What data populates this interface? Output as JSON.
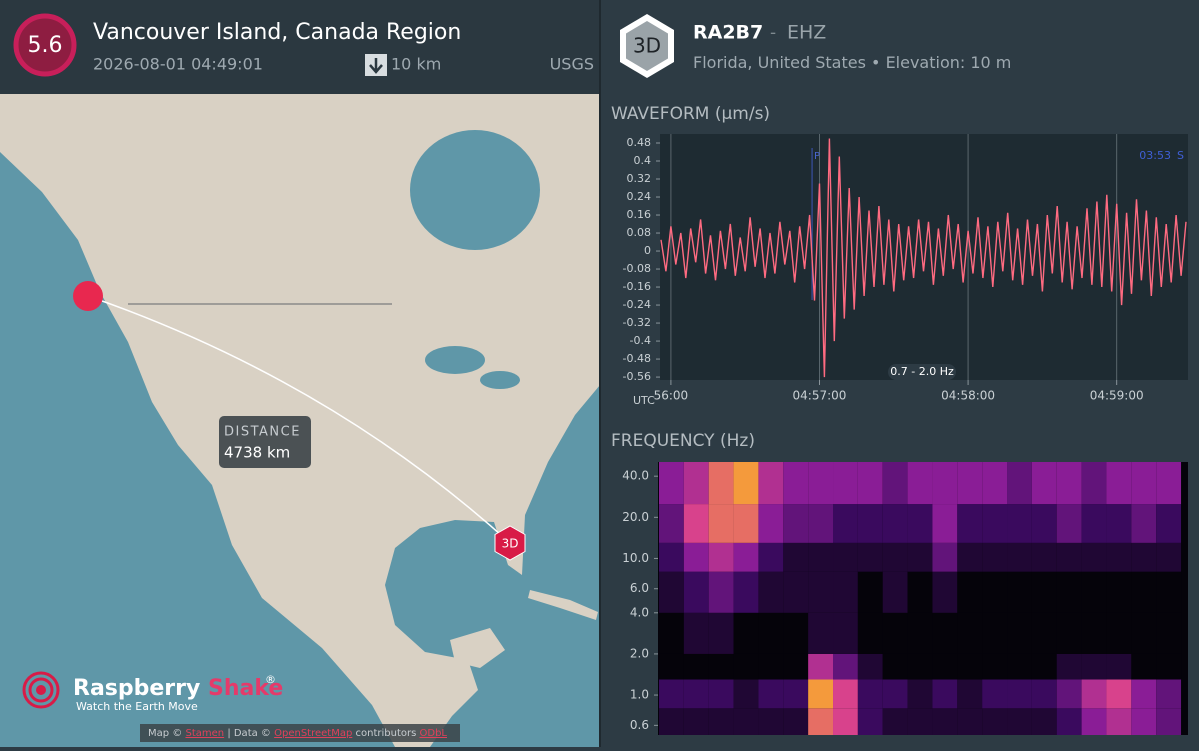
{
  "event": {
    "magnitude": "5.6",
    "title": "Vancouver Island, Canada Region",
    "time": "2026-08-01 04:49:01",
    "depth": "10 km",
    "source": "USGS"
  },
  "map": {
    "distance_label": "DISTANCE",
    "distance": "4738 km",
    "station_marker": "3D",
    "logo": {
      "name": "Raspberry",
      "accent": "Shake",
      "mark": "®",
      "tagline": "Watch the Earth Move"
    },
    "attribution": {
      "prefix": "Map ©",
      "tiles": "Stamen",
      "data": "| Data ©",
      "osm": "OpenStreetMap",
      "contributors": "contributors",
      "license": "ODbL"
    }
  },
  "station": {
    "badge": "3D",
    "code": "RA2B7",
    "separator": "-",
    "channel": "EHZ",
    "location": "Florida, United States",
    "bullet": "•",
    "elevation": "Elevation: 10 m"
  },
  "chart_data": [
    {
      "type": "line",
      "title": "WAVEFORM",
      "unit": "(µm/s)",
      "color": "#ff6b81",
      "x": [
        -4,
        -2,
        0,
        2,
        4,
        6,
        8,
        10,
        12,
        14,
        16,
        18,
        20,
        22,
        24,
        26,
        28,
        30,
        32,
        34,
        36,
        38,
        40,
        42,
        44,
        46,
        48,
        50,
        52,
        54,
        56,
        58,
        60,
        62,
        64,
        66,
        68,
        70,
        72,
        74,
        76,
        78,
        80,
        82,
        84,
        86,
        88,
        90,
        92,
        94,
        96,
        98,
        100,
        102,
        104,
        106,
        108,
        110,
        112,
        114,
        116,
        118,
        120,
        122,
        124,
        126,
        128,
        130,
        132,
        134,
        136,
        138,
        140,
        142,
        144,
        146,
        148,
        150,
        152,
        154,
        156,
        158,
        160,
        162,
        164,
        166,
        168,
        170,
        172,
        174,
        176,
        178,
        180,
        182,
        184,
        186,
        188,
        190,
        192,
        194,
        196,
        198,
        200,
        202,
        204,
        206,
        208
      ],
      "values": [
        0.05,
        -0.09,
        0.11,
        -0.06,
        0.08,
        -0.12,
        0.1,
        -0.05,
        0.14,
        -0.1,
        0.07,
        -0.13,
        0.09,
        -0.08,
        0.12,
        -0.11,
        0.06,
        -0.09,
        0.15,
        -0.07,
        0.1,
        -0.12,
        0.08,
        -0.1,
        0.13,
        -0.06,
        0.09,
        -0.14,
        0.11,
        -0.08,
        0.16,
        -0.22,
        0.3,
        -0.56,
        0.5,
        -0.4,
        0.42,
        -0.3,
        0.28,
        -0.26,
        0.24,
        -0.2,
        0.18,
        -0.16,
        0.2,
        -0.15,
        0.14,
        -0.18,
        0.12,
        -0.13,
        0.11,
        -0.12,
        0.14,
        -0.09,
        0.13,
        -0.15,
        0.1,
        -0.11,
        0.16,
        -0.08,
        0.12,
        -0.14,
        0.09,
        -0.1,
        0.15,
        -0.12,
        0.11,
        -0.16,
        0.13,
        -0.09,
        0.17,
        -0.13,
        0.1,
        -0.15,
        0.14,
        -0.11,
        0.12,
        -0.18,
        0.16,
        -0.1,
        0.2,
        -0.14,
        0.13,
        -0.17,
        0.11,
        -0.12,
        0.19,
        -0.15,
        0.22,
        -0.16,
        0.25,
        -0.18,
        0.21,
        -0.24,
        0.17,
        -0.19,
        0.23,
        -0.13,
        0.18,
        -0.2,
        0.15,
        -0.16,
        0.12,
        -0.14,
        0.16,
        -0.11,
        0.13
      ],
      "xlim": [
        -4.4,
        208.8
      ],
      "ylim": [
        -0.573,
        0.52
      ],
      "xticks": [
        {
          "value": 0,
          "label": "56:00"
        },
        {
          "value": 60,
          "label": "04:57:00"
        },
        {
          "value": 120,
          "label": "04:58:00"
        },
        {
          "value": 180,
          "label": "04:59:00"
        }
      ],
      "yticks": [
        0.48,
        0.4,
        0.32,
        0.24,
        0.16,
        0.08,
        0,
        -0.08,
        -0.16,
        -0.24,
        -0.32,
        -0.4,
        -0.48,
        -0.56
      ],
      "x_unit": "UTC",
      "filter": "0.7 - 2.0 Hz",
      "picks": [
        {
          "label": "P",
          "x": 57
        }
      ],
      "right_time": "03:53",
      "right_pick": "S",
      "grid": true
    },
    {
      "type": "heatmap",
      "title": "FREQUENCY",
      "unit": "(Hz)",
      "y_scale": "log",
      "xlim": [
        -4.4,
        208.8
      ],
      "ylim": [
        0.51,
        50.8
      ],
      "yticks": [
        {
          "value": 40,
          "label": "40.0"
        },
        {
          "value": 20,
          "label": "20.0"
        },
        {
          "value": 10,
          "label": "10.0"
        },
        {
          "value": 6,
          "label": "6.0"
        },
        {
          "value": 4,
          "label": "4.0"
        },
        {
          "value": 2,
          "label": "2.0"
        },
        {
          "value": 1,
          "label": "1.0"
        },
        {
          "value": 0.6,
          "label": "0.6"
        }
      ],
      "x_bins": [
        -4,
        6,
        16,
        26,
        36,
        46,
        56,
        66,
        76,
        86,
        96,
        106,
        116,
        126,
        136,
        146,
        156,
        166,
        176,
        186,
        196,
        206
      ],
      "y_bins": [
        0.51,
        0.8,
        1.3,
        2,
        4,
        8,
        13,
        25,
        50.8
      ],
      "z": [
        [
          1,
          1,
          1,
          1,
          1,
          1,
          7,
          6,
          2,
          1,
          1,
          1,
          1,
          1,
          1,
          1,
          2,
          4,
          5,
          4,
          3
        ],
        [
          2,
          2,
          2,
          1,
          2,
          2,
          8,
          6,
          2,
          2,
          1,
          2,
          1,
          2,
          2,
          2,
          3,
          5,
          6,
          4,
          3
        ],
        [
          0,
          0,
          0,
          0,
          0,
          0,
          5,
          3,
          1,
          0,
          0,
          0,
          0,
          0,
          0,
          0,
          1,
          1,
          1,
          0,
          0
        ],
        [
          0,
          1,
          1,
          0,
          0,
          0,
          1,
          1,
          0,
          0,
          0,
          0,
          0,
          0,
          0,
          0,
          0,
          0,
          0,
          0,
          0
        ],
        [
          1,
          2,
          3,
          2,
          1,
          1,
          1,
          1,
          0,
          1,
          0,
          1,
          0,
          0,
          0,
          0,
          0,
          0,
          0,
          0,
          0
        ],
        [
          2,
          4,
          5,
          4,
          2,
          1,
          1,
          1,
          1,
          1,
          1,
          3,
          1,
          1,
          1,
          1,
          1,
          1,
          1,
          1,
          1
        ],
        [
          3,
          6,
          7,
          7,
          4,
          3,
          3,
          2,
          2,
          2,
          2,
          4,
          2,
          2,
          2,
          2,
          3,
          2,
          2,
          3,
          2
        ],
        [
          4,
          5,
          7,
          8,
          5,
          4,
          4,
          4,
          4,
          3,
          4,
          4,
          4,
          4,
          3,
          4,
          4,
          3,
          4,
          4,
          4
        ]
      ],
      "zlim": [
        0,
        8
      ],
      "colormap": [
        "#05030a",
        "#3a0a5e",
        "#8a1d96",
        "#d8428c",
        "#f49a3c"
      ]
    }
  ]
}
